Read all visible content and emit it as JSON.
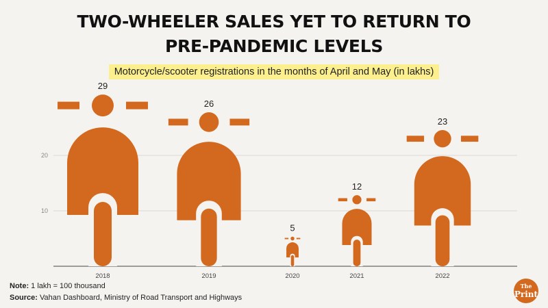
{
  "title_line1": "TWO-WHEELER SALES YET TO RETURN TO",
  "title_line2": "PRE-PANDEMIC LEVELS",
  "subtitle": "Motorcycle/scooter registrations in the months of April and May (in lakhs)",
  "note_label": "Note:",
  "note_text": " 1 lakh = 100 thousand",
  "source_label": "Source:",
  "source_text": " Vahan Dashboard, Ministry of Road Transport and Highways",
  "logo_line1": "The",
  "logo_line2": "Print",
  "colors": {
    "accent": "#d2691e",
    "background": "#f5f3f0",
    "highlight": "#fbef8e"
  },
  "chart_data": {
    "type": "bar",
    "categories": [
      "2018",
      "2019",
      "2020",
      "2021",
      "2022"
    ],
    "values": [
      29,
      26,
      5,
      12,
      23
    ],
    "value_labels": [
      "29",
      "26",
      "5",
      "12",
      "23"
    ],
    "yticks": [
      10,
      20
    ],
    "ylim": [
      0,
      29
    ],
    "grid": true,
    "mark": "scooter-icon"
  }
}
